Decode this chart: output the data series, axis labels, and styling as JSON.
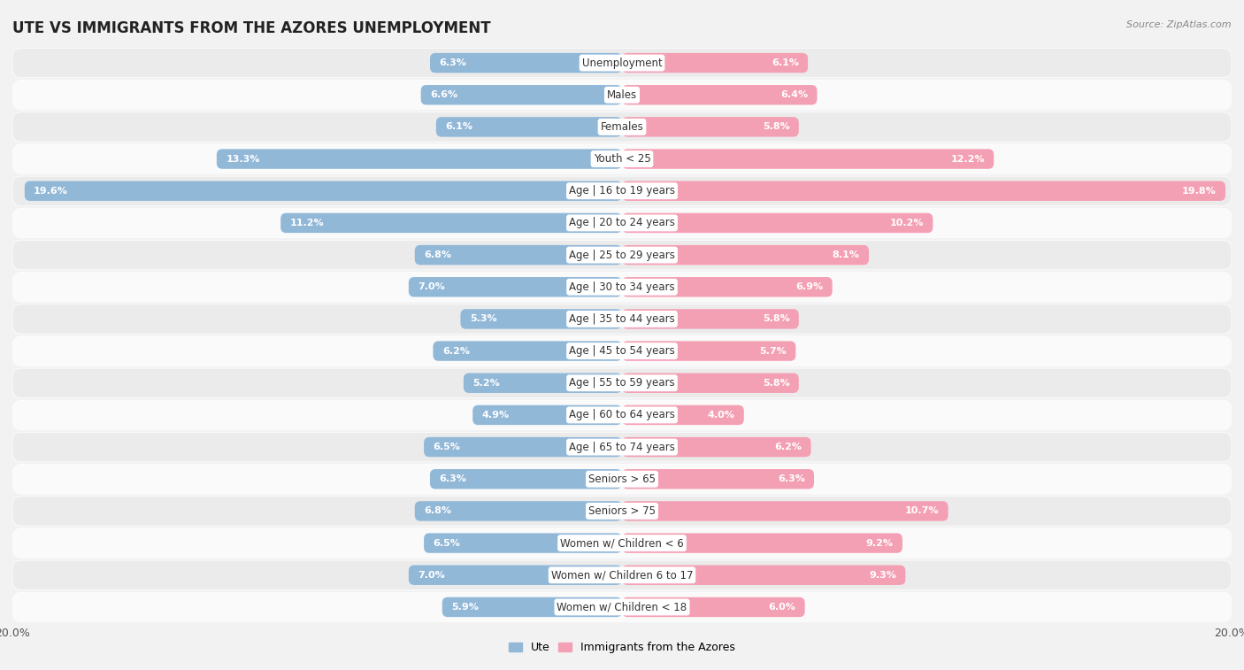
{
  "title": "UTE VS IMMIGRANTS FROM THE AZORES UNEMPLOYMENT",
  "source": "Source: ZipAtlas.com",
  "categories": [
    "Unemployment",
    "Males",
    "Females",
    "Youth < 25",
    "Age | 16 to 19 years",
    "Age | 20 to 24 years",
    "Age | 25 to 29 years",
    "Age | 30 to 34 years",
    "Age | 35 to 44 years",
    "Age | 45 to 54 years",
    "Age | 55 to 59 years",
    "Age | 60 to 64 years",
    "Age | 65 to 74 years",
    "Seniors > 65",
    "Seniors > 75",
    "Women w/ Children < 6",
    "Women w/ Children 6 to 17",
    "Women w/ Children < 18"
  ],
  "ute_values": [
    6.3,
    6.6,
    6.1,
    13.3,
    19.6,
    11.2,
    6.8,
    7.0,
    5.3,
    6.2,
    5.2,
    4.9,
    6.5,
    6.3,
    6.8,
    6.5,
    7.0,
    5.9
  ],
  "azores_values": [
    6.1,
    6.4,
    5.8,
    12.2,
    19.8,
    10.2,
    8.1,
    6.9,
    5.8,
    5.7,
    5.8,
    4.0,
    6.2,
    6.3,
    10.7,
    9.2,
    9.3,
    6.0
  ],
  "ute_color": "#92b8d8",
  "azores_color": "#f4a0b4",
  "bg_color": "#f2f2f2",
  "row_color_light": "#fafafa",
  "row_color_dark": "#ebebeb",
  "max_value": 20.0,
  "title_fontsize": 12,
  "label_fontsize": 8.5,
  "value_fontsize": 8,
  "legend_label_ute": "Ute",
  "legend_label_azores": "Immigrants from the Azores"
}
